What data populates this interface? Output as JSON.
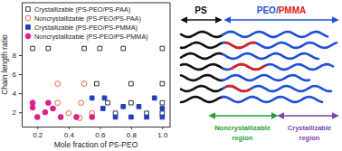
{
  "chart_data": {
    "type": "scatter",
    "x_label": "Mole fraction of PS-PEO",
    "y_label": "Chain length ratio",
    "xlim": [
      0.1,
      1.05
    ],
    "xticks": [
      0.2,
      0.4,
      0.6,
      0.8,
      {
        "value": 1,
        "label": "1.0"
      }
    ],
    "ylim": [
      0.5,
      13.5
    ],
    "yticks": [
      2,
      4,
      6,
      8
    ],
    "legend": "upper left",
    "series": [
      {
        "name": "Crystallizable (PS-PEO/PS-PAA)",
        "color": "#333333",
        "marker": "square-open",
        "x": [
          0.17,
          0.27,
          0.5,
          0.6,
          0.75,
          1.0,
          0.58,
          0.8,
          1.0,
          0.65,
          0.8,
          1.0,
          0.7,
          0.9,
          1.0
        ],
        "values": [
          8.7,
          8.7,
          8.7,
          8.7,
          8.7,
          8.7,
          5.0,
          5.0,
          5.0,
          3.0,
          3.0,
          3.0,
          1.9,
          1.9,
          1.9
        ]
      },
      {
        "name": "Noncrystallizable (PS-PEO/PS-PAA)",
        "color": "#e8603c",
        "marker": "circle-open",
        "x": [
          0.33,
          0.5,
          0.33,
          0.48,
          0.4,
          0.55,
          0.47
        ],
        "values": [
          5.0,
          5.0,
          3.0,
          3.0,
          1.9,
          1.9,
          1.4
        ]
      },
      {
        "name": "Crystallizable (PS-PEO/PS-PMMA)",
        "color": "#1f3fbf",
        "marker": "square",
        "x": [
          0.55,
          0.63,
          0.95,
          0.62,
          1.0,
          0.75,
          0.85,
          0.7,
          0.8,
          0.9,
          1.0
        ],
        "values": [
          3.5,
          3.5,
          3.5,
          2.4,
          2.4,
          2.6,
          2.6,
          1.5,
          1.5,
          1.5,
          1.5
        ]
      },
      {
        "name": "Noncrystallizable (PS-PEO/PS-PMMA)",
        "color": "#e0208a",
        "marker": "circle",
        "x": [
          0.17,
          0.27,
          0.17,
          0.3,
          0.25,
          0.2,
          0.35,
          0.45,
          0.55
        ],
        "values": [
          3.0,
          3.0,
          2.5,
          2.4,
          2.0,
          1.5,
          1.5,
          1.5,
          1.5
        ]
      }
    ]
  },
  "diagram": {
    "ps_label": {
      "text": "PS",
      "color": "#111111"
    },
    "matrix_label": [
      {
        "text": "PEO",
        "color": "#1f4fd8"
      },
      {
        "text": "/",
        "color": "#1f4fd8"
      },
      {
        "text": "PMMA",
        "color": "#e0201a"
      }
    ],
    "regions": [
      {
        "lines": [
          "Noncrystallizable",
          "region"
        ],
        "color": "#22a030"
      },
      {
        "lines": [
          "Crystallizable",
          "region"
        ],
        "color": "#7a3fb0"
      }
    ]
  }
}
